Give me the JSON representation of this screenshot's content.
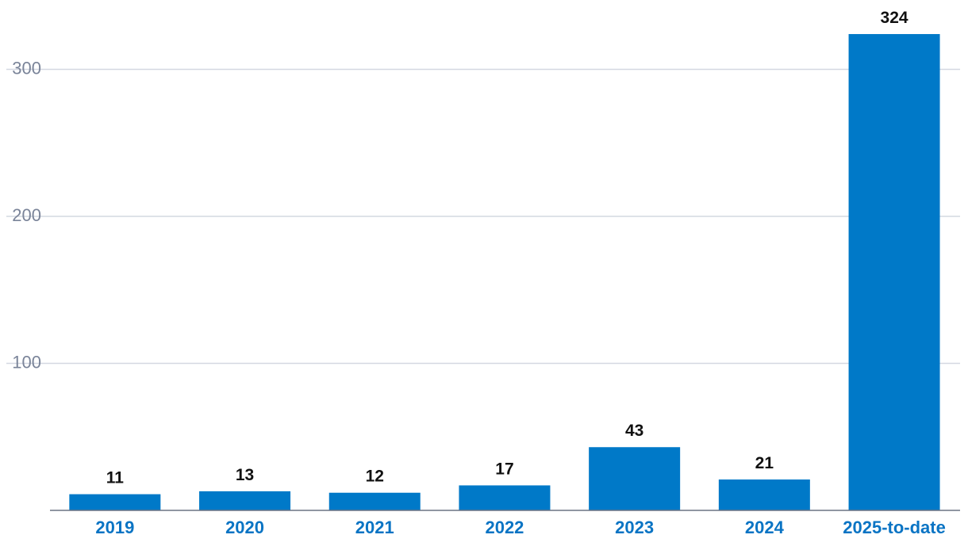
{
  "chart_data": {
    "type": "bar",
    "title": "",
    "xlabel": "",
    "ylabel": "",
    "categories": [
      "2019",
      "2020",
      "2021",
      "2022",
      "2023",
      "2024",
      "2025-to-date"
    ],
    "values": [
      11,
      13,
      12,
      17,
      43,
      21,
      324
    ],
    "y_ticks": [
      100,
      200,
      300
    ],
    "ylim": [
      0,
      324
    ],
    "grid": true,
    "bar_color": "#0079c8",
    "category_label_color": "#0a74c4",
    "tick_label_color": "#7a8499",
    "data_label_color": "#111111",
    "legend": "none"
  }
}
